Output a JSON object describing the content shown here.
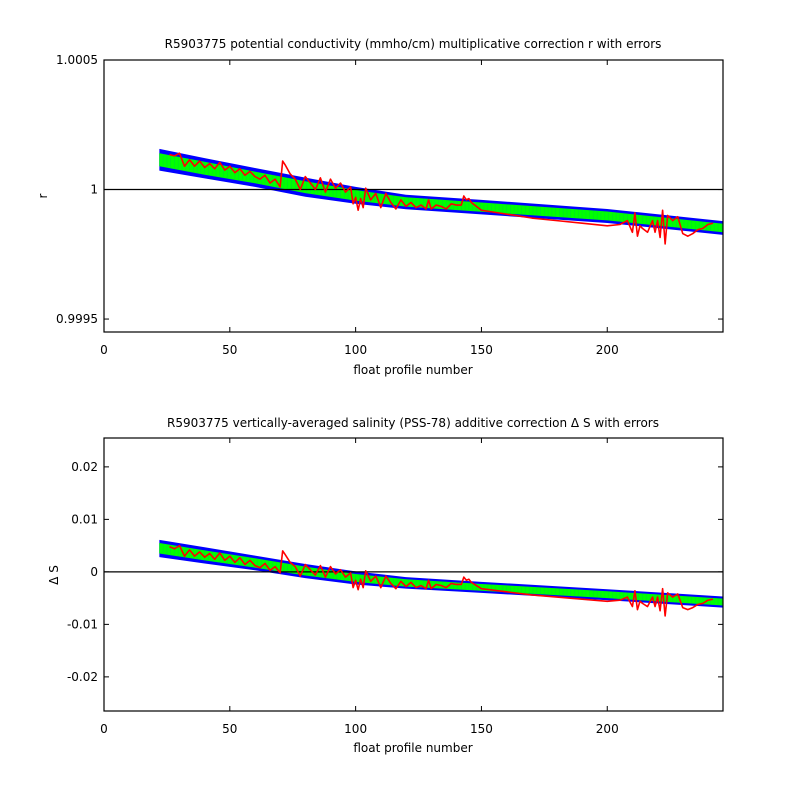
{
  "chart_data": [
    {
      "type": "line",
      "title": "R5903775 potential conductivity (mmho/cm) multiplicative correction r with errors",
      "xlabel": "float profile number",
      "ylabel": "r",
      "xlim": [
        0,
        246
      ],
      "ylim": [
        0.99945,
        1.0005
      ],
      "xticks": [
        0,
        50,
        100,
        150,
        200
      ],
      "xtick_labels": [
        "0",
        "50",
        "100",
        "150",
        "200"
      ],
      "yticks": [
        0.9995,
        1.0,
        1.0005
      ],
      "ytick_labels": [
        "0.9995",
        "1",
        "1.0005"
      ],
      "grid": false,
      "reference_line": 1.0,
      "colors": {
        "error_band_outer": "#0000ff",
        "error_band_inner": "#00ff00",
        "measured": "#ff0000",
        "reference": "#000000"
      },
      "series": [
        {
          "role": "error_band_outer",
          "x": [
            22,
            40,
            60,
            80,
            100,
            120,
            150,
            200,
            246
          ],
          "upper": [
            1.000157,
            1.000121,
            1.000083,
            1.000046,
            1.00001,
            0.99998,
            0.99996,
            0.999925,
            0.999878
          ],
          "lower": [
            1.000073,
            1.000043,
            1.00001,
            0.999972,
            0.999945,
            0.999924,
            0.999904,
            0.999871,
            0.999825
          ]
        },
        {
          "role": "error_band_inner",
          "x": [
            22,
            40,
            60,
            80,
            100,
            120,
            150,
            200,
            246
          ],
          "upper": [
            1.00014,
            1.000107,
            1.000069,
            1.000032,
            0.999998,
            0.99997,
            0.99995,
            0.999915,
            0.999868
          ],
          "lower": [
            1.00009,
            1.000057,
            1.000024,
            0.999986,
            0.999957,
            0.999934,
            0.999914,
            0.999881,
            0.999835
          ]
        },
        {
          "role": "measured",
          "x": [
            26,
            28,
            30,
            32,
            34,
            36,
            38,
            40,
            42,
            44,
            46,
            48,
            50,
            52,
            54,
            56,
            58,
            60,
            62,
            64,
            66,
            68,
            70,
            71,
            72,
            74,
            76,
            78,
            80,
            82,
            84,
            86,
            88,
            90,
            92,
            94,
            96,
            98,
            99,
            100,
            101,
            102,
            103,
            104,
            106,
            108,
            110,
            112,
            114,
            116,
            118,
            120,
            122,
            124,
            126,
            128,
            129,
            130,
            132,
            134,
            136,
            138,
            140,
            142,
            143,
            144,
            145,
            146,
            148,
            150,
            160,
            170,
            180,
            190,
            200,
            205,
            208,
            210,
            211,
            212,
            213,
            214,
            216,
            218,
            219,
            220,
            221,
            222,
            223,
            224,
            226,
            228,
            230,
            232,
            234,
            236,
            238,
            240,
            242
          ],
          "y": [
            1.000135,
            1.00013,
            1.00014,
            1.00009,
            1.000115,
            1.00009,
            1.00011,
            1.000085,
            1.0001,
            1.00008,
            1.000105,
            1.000075,
            1.00009,
            1.000065,
            1.00008,
            1.000055,
            1.00007,
            1.00005,
            1.00004,
            1.000055,
            1.000025,
            1.00004,
            1.00001,
            1.00011,
            1.000095,
            1.00006,
            1.00004,
            1.0,
            1.00005,
            1.000025,
            1.0,
            1.000045,
            0.99999,
            1.00004,
            1.000005,
            1.000025,
            0.99999,
            1.00001,
            0.999945,
            0.99997,
            0.99992,
            0.999965,
            0.99993,
            1.000005,
            0.99996,
            0.999985,
            0.99993,
            0.999985,
            0.99995,
            0.999925,
            0.99996,
            0.999935,
            0.99995,
            0.99993,
            0.99994,
            0.999925,
            0.99996,
            0.999925,
            0.99994,
            0.999935,
            0.999925,
            0.999945,
            0.99994,
            0.99994,
            0.999975,
            0.99996,
            0.999965,
            0.99995,
            0.999935,
            0.99992,
            0.999905,
            0.99989,
            0.99988,
            0.99987,
            0.99986,
            0.999865,
            0.99988,
            0.999835,
            0.99991,
            0.99982,
            0.99986,
            0.99985,
            0.999835,
            0.99988,
            0.999835,
            0.99988,
            0.999815,
            0.99992,
            0.99979,
            0.9999,
            0.99988,
            0.999895,
            0.99983,
            0.99982,
            0.99983,
            0.999845,
            0.99985,
            0.999865,
            0.99987
          ]
        }
      ]
    },
    {
      "type": "line",
      "title": "R5903775 vertically-averaged salinity (PSS-78) additive correction Δ S with errors",
      "xlabel": "float profile number",
      "ylabel": "Δ S",
      "xlim": [
        0,
        246
      ],
      "ylim": [
        -0.0265,
        0.0255
      ],
      "xticks": [
        0,
        50,
        100,
        150,
        200
      ],
      "xtick_labels": [
        "0",
        "50",
        "100",
        "150",
        "200"
      ],
      "yticks": [
        -0.02,
        -0.01,
        0,
        0.01,
        0.02
      ],
      "ytick_labels": [
        "-0.02",
        "-0.01",
        "0",
        "0.01",
        "0.02"
      ],
      "grid": false,
      "reference_line": 0,
      "colors": {
        "error_band_outer": "#0000ff",
        "error_band_inner": "#00ff00",
        "measured": "#ff0000",
        "reference": "#000000"
      },
      "series": [
        {
          "role": "error_band_outer",
          "x": [
            22,
            40,
            60,
            80,
            100,
            120,
            150,
            200,
            246
          ],
          "upper": [
            0.0061,
            0.0047,
            0.0031,
            0.0015,
            0.0001,
            -0.001,
            -0.0019,
            -0.0033,
            -0.0047
          ],
          "lower": [
            0.0028,
            0.0016,
            0.0003,
            -0.0012,
            -0.0024,
            -0.0032,
            -0.004,
            -0.0054,
            -0.0068
          ]
        },
        {
          "role": "error_band_inner",
          "x": [
            22,
            40,
            60,
            80,
            100,
            120,
            150,
            200,
            246
          ],
          "upper": [
            0.0055,
            0.0041,
            0.0026,
            0.001,
            -0.0004,
            -0.0014,
            -0.0023,
            -0.0037,
            -0.0051
          ],
          "lower": [
            0.0035,
            0.0022,
            0.0008,
            -0.0007,
            -0.0019,
            -0.0028,
            -0.0036,
            -0.005,
            -0.0064
          ]
        },
        {
          "role": "measured",
          "x": [
            26,
            28,
            30,
            32,
            34,
            36,
            38,
            40,
            42,
            44,
            46,
            48,
            50,
            52,
            54,
            56,
            58,
            60,
            62,
            64,
            66,
            68,
            70,
            71,
            72,
            74,
            76,
            78,
            80,
            82,
            84,
            86,
            88,
            90,
            92,
            94,
            96,
            98,
            99,
            100,
            101,
            102,
            103,
            104,
            106,
            108,
            110,
            112,
            114,
            116,
            118,
            120,
            122,
            124,
            126,
            128,
            129,
            130,
            132,
            134,
            136,
            138,
            140,
            142,
            143,
            144,
            145,
            146,
            148,
            150,
            160,
            170,
            180,
            190,
            200,
            205,
            208,
            210,
            211,
            212,
            213,
            214,
            216,
            218,
            219,
            220,
            221,
            222,
            223,
            224,
            226,
            228,
            230,
            232,
            234,
            236,
            238,
            240,
            242
          ],
          "y": [
            0.0048,
            0.0044,
            0.005,
            0.003,
            0.0042,
            0.003,
            0.0038,
            0.0028,
            0.0035,
            0.0024,
            0.0036,
            0.0022,
            0.003,
            0.0018,
            0.0027,
            0.0014,
            0.0022,
            0.0012,
            0.0008,
            0.0016,
            0.0003,
            0.001,
            -0.0002,
            0.004,
            0.0033,
            0.0018,
            0.001,
            -0.0008,
            0.0014,
            0.0004,
            -0.0006,
            0.0012,
            -0.001,
            0.001,
            -0.0004,
            0.0004,
            -0.001,
            -0.0002,
            -0.003,
            -0.0016,
            -0.0034,
            -0.0014,
            -0.003,
            0.0002,
            -0.0018,
            -0.0008,
            -0.003,
            -0.0008,
            -0.0022,
            -0.0032,
            -0.0018,
            -0.0028,
            -0.002,
            -0.003,
            -0.0026,
            -0.0032,
            -0.0016,
            -0.0032,
            -0.0024,
            -0.0026,
            -0.003,
            -0.0022,
            -0.0024,
            -0.0024,
            -0.001,
            -0.0016,
            -0.0014,
            -0.002,
            -0.0026,
            -0.0032,
            -0.0038,
            -0.0044,
            -0.0048,
            -0.0052,
            -0.0056,
            -0.0054,
            -0.0048,
            -0.0066,
            -0.0036,
            -0.0072,
            -0.0056,
            -0.006,
            -0.0066,
            -0.0048,
            -0.0066,
            -0.0048,
            -0.0074,
            -0.0032,
            -0.0084,
            -0.004,
            -0.0048,
            -0.0042,
            -0.0068,
            -0.0072,
            -0.0068,
            -0.0062,
            -0.006,
            -0.0054,
            -0.0052
          ]
        }
      ]
    }
  ]
}
